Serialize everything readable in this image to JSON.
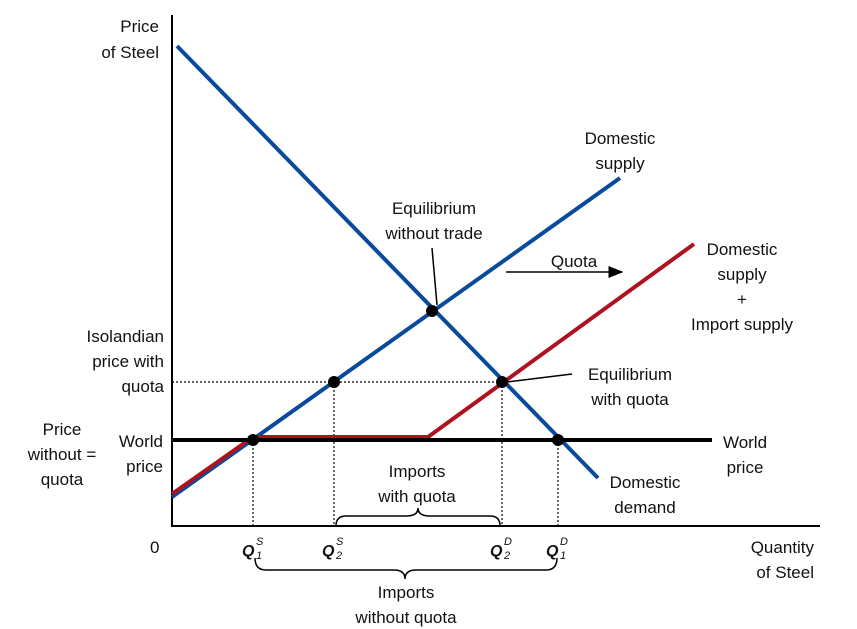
{
  "colors": {
    "demand": "#0a4a9c",
    "supply": "#0a4a9c",
    "supply_plus_import": "#b0111f",
    "world_price": "#000000",
    "axis": "#000000"
  },
  "axes": {
    "y_label_line1": "Price",
    "y_label_line2": "of Steel",
    "x_label_line1": "Quantity",
    "x_label_line2": "of Steel",
    "origin": "0"
  },
  "labels": {
    "domestic_supply_line1": "Domestic",
    "domestic_supply_line2": "supply",
    "domestic_demand_line1": "Domestic",
    "domestic_demand_line2": "demand",
    "combined_supply_line1": "Domestic",
    "combined_supply_line2": "supply",
    "combined_supply_line3": "+",
    "combined_supply_line4": "Import supply",
    "quota": "Quota",
    "eq_no_trade_line1": "Equilibrium",
    "eq_no_trade_line2": "without trade",
    "eq_quota_line1": "Equilibrium",
    "eq_quota_line2": "with quota",
    "price_quota_line1": "Isolandian",
    "price_quota_line2": "price with",
    "price_quota_line3": "quota",
    "price_no_quota_line1": "Price",
    "price_no_quota_line2": "without =",
    "price_no_quota_line3": "quota",
    "world_price_left_line1": "World",
    "world_price_left_line2": "price",
    "world_price_right_line1": "World",
    "world_price_right_line2": "price",
    "imports_quota_line1": "Imports",
    "imports_quota_line2": "with quota",
    "imports_no_quota_line1": "Imports",
    "imports_no_quota_line2": "without quota"
  },
  "quantities": {
    "q1s_main": "Q",
    "q1s_sup": "S",
    "q1s_sub": "1",
    "q2s_main": "Q",
    "q2s_sup": "S",
    "q2s_sub": "2",
    "q2d_main": "Q",
    "q2d_sup": "D",
    "q2d_sub": "2",
    "q1d_main": "Q",
    "q1d_sup": "D",
    "q1d_sub": "1"
  }
}
